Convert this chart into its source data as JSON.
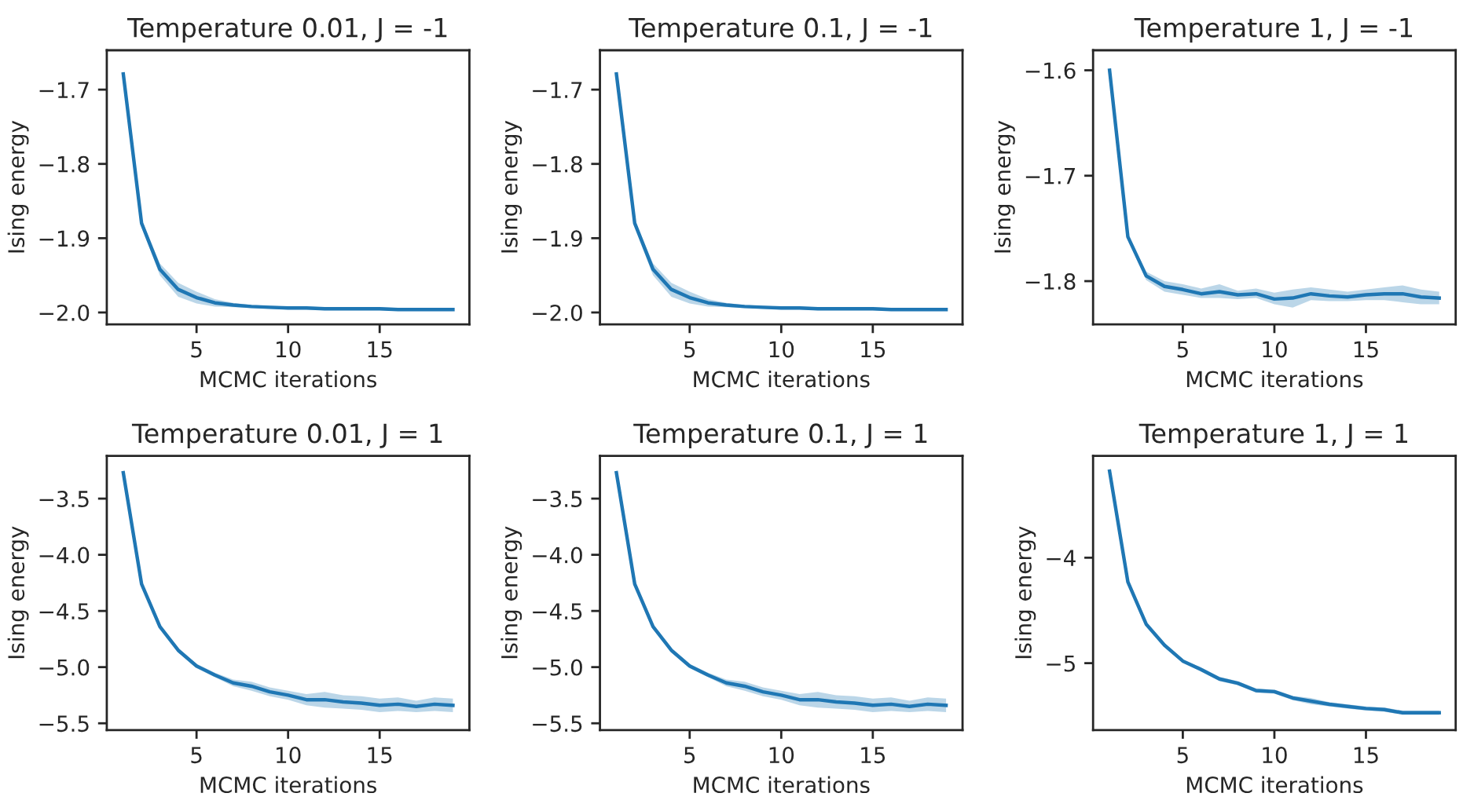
{
  "chart_data": [
    {
      "type": "line",
      "title": "Temperature 0.01, J = -1",
      "xlabel": "MCMC iterations",
      "ylabel": "Ising energy",
      "x": [
        1,
        2,
        3,
        4,
        5,
        6,
        7,
        8,
        9,
        10,
        11,
        12,
        13,
        14,
        15,
        16,
        17,
        18,
        19
      ],
      "grid": false,
      "series": [
        {
          "color": "#1f77b4",
          "values": [
            -1.679,
            -1.88,
            -1.942,
            -1.969,
            -1.98,
            -1.987,
            -1.99,
            -1.992,
            -1.993,
            -1.994,
            -1.994,
            -1.995,
            -1.995,
            -1.995,
            -1.995,
            -1.996,
            -1.996,
            -1.996,
            -1.996
          ],
          "lower": [
            -1.681,
            -1.885,
            -1.95,
            -1.979,
            -1.988,
            -1.992,
            -1.993,
            -1.994,
            -1.995,
            -1.996,
            -1.996,
            -1.997,
            -1.997,
            -1.997,
            -1.997,
            -1.998,
            -1.998,
            -1.998,
            -1.998
          ],
          "upper": [
            -1.677,
            -1.875,
            -1.934,
            -1.96,
            -1.972,
            -1.982,
            -1.987,
            -1.99,
            -1.991,
            -1.992,
            -1.992,
            -1.993,
            -1.993,
            -1.993,
            -1.993,
            -1.994,
            -1.994,
            -1.994,
            -1.994
          ]
        }
      ],
      "xlim": [
        0.1,
        19.9
      ],
      "ylim": [
        -2.016,
        -1.647
      ],
      "xticks": [
        5,
        10,
        15
      ],
      "yticks": [
        {
          "value": -2.0,
          "label": "−2.0"
        },
        {
          "value": -1.9,
          "label": "−1.9"
        },
        {
          "value": -1.8,
          "label": "−1.8"
        },
        {
          "value": -1.7,
          "label": "−1.7"
        }
      ]
    },
    {
      "type": "line",
      "title": "Temperature 0.1, J = -1",
      "xlabel": "MCMC iterations",
      "ylabel": "Ising energy",
      "x": [
        1,
        2,
        3,
        4,
        5,
        6,
        7,
        8,
        9,
        10,
        11,
        12,
        13,
        14,
        15,
        16,
        17,
        18,
        19
      ],
      "grid": false,
      "series": [
        {
          "color": "#1f77b4",
          "values": [
            -1.679,
            -1.88,
            -1.942,
            -1.969,
            -1.98,
            -1.987,
            -1.99,
            -1.992,
            -1.993,
            -1.994,
            -1.994,
            -1.995,
            -1.995,
            -1.995,
            -1.995,
            -1.996,
            -1.996,
            -1.996,
            -1.996
          ],
          "lower": [
            -1.681,
            -1.885,
            -1.95,
            -1.979,
            -1.988,
            -1.992,
            -1.993,
            -1.994,
            -1.995,
            -1.996,
            -1.996,
            -1.997,
            -1.997,
            -1.997,
            -1.997,
            -1.998,
            -1.998,
            -1.998,
            -1.998
          ],
          "upper": [
            -1.677,
            -1.875,
            -1.934,
            -1.96,
            -1.972,
            -1.982,
            -1.987,
            -1.99,
            -1.991,
            -1.992,
            -1.992,
            -1.993,
            -1.993,
            -1.993,
            -1.993,
            -1.994,
            -1.994,
            -1.994,
            -1.994
          ]
        }
      ],
      "xlim": [
        0.1,
        19.9
      ],
      "ylim": [
        -2.016,
        -1.647
      ],
      "xticks": [
        5,
        10,
        15
      ],
      "yticks": [
        {
          "value": -2.0,
          "label": "−2.0"
        },
        {
          "value": -1.9,
          "label": "−1.9"
        },
        {
          "value": -1.8,
          "label": "−1.8"
        },
        {
          "value": -1.7,
          "label": "−1.7"
        }
      ]
    },
    {
      "type": "line",
      "title": "Temperature 1, J = -1",
      "xlabel": "MCMC iterations",
      "ylabel": "Ising energy",
      "x": [
        1,
        2,
        3,
        4,
        5,
        6,
        7,
        8,
        9,
        10,
        11,
        12,
        13,
        14,
        15,
        16,
        17,
        18,
        19
      ],
      "grid": false,
      "series": [
        {
          "color": "#1f77b4",
          "values": [
            -1.6,
            -1.758,
            -1.795,
            -1.805,
            -1.808,
            -1.812,
            -1.81,
            -1.813,
            -1.812,
            -1.817,
            -1.816,
            -1.812,
            -1.814,
            -1.815,
            -1.813,
            -1.812,
            -1.812,
            -1.815,
            -1.816
          ],
          "lower": [
            -1.601,
            -1.761,
            -1.799,
            -1.81,
            -1.813,
            -1.816,
            -1.816,
            -1.817,
            -1.816,
            -1.822,
            -1.825,
            -1.818,
            -1.819,
            -1.819,
            -1.818,
            -1.818,
            -1.82,
            -1.822,
            -1.822
          ],
          "upper": [
            -1.599,
            -1.755,
            -1.791,
            -1.8,
            -1.803,
            -1.807,
            -1.803,
            -1.809,
            -1.807,
            -1.811,
            -1.808,
            -1.806,
            -1.808,
            -1.81,
            -1.808,
            -1.806,
            -1.804,
            -1.808,
            -1.81
          ]
        }
      ],
      "xlim": [
        0.1,
        19.9
      ],
      "ylim": [
        -1.841,
        -1.581
      ],
      "xticks": [
        5,
        10,
        15
      ],
      "yticks": [
        {
          "value": -1.8,
          "label": "−1.8"
        },
        {
          "value": -1.7,
          "label": "−1.7"
        },
        {
          "value": -1.6,
          "label": "−1.6"
        }
      ]
    },
    {
      "type": "line",
      "title": "Temperature 0.01, J = 1",
      "xlabel": "MCMC iterations",
      "ylabel": "Ising energy",
      "x": [
        1,
        2,
        3,
        4,
        5,
        6,
        7,
        8,
        9,
        10,
        11,
        12,
        13,
        14,
        15,
        16,
        17,
        18,
        19
      ],
      "grid": false,
      "series": [
        {
          "color": "#1f77b4",
          "values": [
            -3.27,
            -4.26,
            -4.64,
            -4.85,
            -4.99,
            -5.07,
            -5.14,
            -5.17,
            -5.22,
            -5.25,
            -5.29,
            -5.29,
            -5.31,
            -5.32,
            -5.34,
            -5.33,
            -5.35,
            -5.33,
            -5.34
          ],
          "lower": [
            -3.28,
            -4.27,
            -4.65,
            -4.87,
            -5.01,
            -5.09,
            -5.17,
            -5.21,
            -5.26,
            -5.29,
            -5.34,
            -5.36,
            -5.37,
            -5.38,
            -5.4,
            -5.39,
            -5.4,
            -5.39,
            -5.4
          ],
          "upper": [
            -3.26,
            -4.25,
            -4.63,
            -4.83,
            -4.97,
            -5.05,
            -5.11,
            -5.13,
            -5.18,
            -5.21,
            -5.24,
            -5.22,
            -5.25,
            -5.26,
            -5.28,
            -5.27,
            -5.3,
            -5.27,
            -5.28
          ]
        }
      ],
      "xlim": [
        0.1,
        19.9
      ],
      "ylim": [
        -5.56,
        -3.12
      ],
      "xticks": [
        5,
        10,
        15
      ],
      "yticks": [
        {
          "value": -5.5,
          "label": "−5.5"
        },
        {
          "value": -5.0,
          "label": "−5.0"
        },
        {
          "value": -4.5,
          "label": "−4.5"
        },
        {
          "value": -4.0,
          "label": "−4.0"
        },
        {
          "value": -3.5,
          "label": "−3.5"
        }
      ]
    },
    {
      "type": "line",
      "title": "Temperature 0.1, J = 1",
      "xlabel": "MCMC iterations",
      "ylabel": "Ising energy",
      "x": [
        1,
        2,
        3,
        4,
        5,
        6,
        7,
        8,
        9,
        10,
        11,
        12,
        13,
        14,
        15,
        16,
        17,
        18,
        19
      ],
      "grid": false,
      "series": [
        {
          "color": "#1f77b4",
          "values": [
            -3.27,
            -4.26,
            -4.64,
            -4.85,
            -4.99,
            -5.07,
            -5.14,
            -5.17,
            -5.22,
            -5.25,
            -5.29,
            -5.29,
            -5.31,
            -5.32,
            -5.34,
            -5.33,
            -5.35,
            -5.33,
            -5.34
          ],
          "lower": [
            -3.28,
            -4.27,
            -4.65,
            -4.87,
            -5.01,
            -5.09,
            -5.17,
            -5.21,
            -5.26,
            -5.29,
            -5.34,
            -5.36,
            -5.37,
            -5.38,
            -5.4,
            -5.39,
            -5.4,
            -5.39,
            -5.4
          ],
          "upper": [
            -3.26,
            -4.25,
            -4.63,
            -4.83,
            -4.97,
            -5.05,
            -5.11,
            -5.13,
            -5.18,
            -5.21,
            -5.24,
            -5.22,
            -5.25,
            -5.26,
            -5.28,
            -5.27,
            -5.3,
            -5.27,
            -5.28
          ]
        }
      ],
      "xlim": [
        0.1,
        19.9
      ],
      "ylim": [
        -5.56,
        -3.12
      ],
      "xticks": [
        5,
        10,
        15
      ],
      "yticks": [
        {
          "value": -5.5,
          "label": "−5.5"
        },
        {
          "value": -5.0,
          "label": "−5.0"
        },
        {
          "value": -4.5,
          "label": "−4.5"
        },
        {
          "value": -4.0,
          "label": "−4.0"
        },
        {
          "value": -3.5,
          "label": "−3.5"
        }
      ]
    },
    {
      "type": "line",
      "title": "Temperature 1, J = 1",
      "xlabel": "MCMC iterations",
      "ylabel": "Ising energy",
      "x": [
        1,
        2,
        3,
        4,
        5,
        6,
        7,
        8,
        9,
        10,
        11,
        12,
        13,
        14,
        15,
        16,
        17,
        18,
        19
      ],
      "grid": false,
      "series": [
        {
          "color": "#1f77b4",
          "values": [
            -3.18,
            -4.23,
            -4.63,
            -4.83,
            -4.98,
            -5.06,
            -5.15,
            -5.19,
            -5.26,
            -5.27,
            -5.33,
            -5.36,
            -5.39,
            -5.41,
            -5.43,
            -5.44,
            -5.47,
            -5.47,
            -5.47
          ],
          "lower": [
            -3.19,
            -4.24,
            -4.64,
            -4.84,
            -4.99,
            -5.08,
            -5.17,
            -5.21,
            -5.28,
            -5.29,
            -5.35,
            -5.39,
            -5.41,
            -5.43,
            -5.45,
            -5.46,
            -5.49,
            -5.49,
            -5.49
          ],
          "upper": [
            -3.17,
            -4.22,
            -4.62,
            -4.82,
            -4.97,
            -5.04,
            -5.13,
            -5.17,
            -5.24,
            -5.25,
            -5.31,
            -5.33,
            -5.37,
            -5.39,
            -5.41,
            -5.42,
            -5.45,
            -5.45,
            -5.45
          ]
        }
      ],
      "xlim": [
        0.1,
        19.9
      ],
      "ylim": [
        -5.634,
        -3.035
      ],
      "xticks": [
        5,
        10,
        15
      ],
      "yticks": [
        {
          "value": -5,
          "label": "−5"
        },
        {
          "value": -4,
          "label": "−4"
        }
      ]
    }
  ]
}
